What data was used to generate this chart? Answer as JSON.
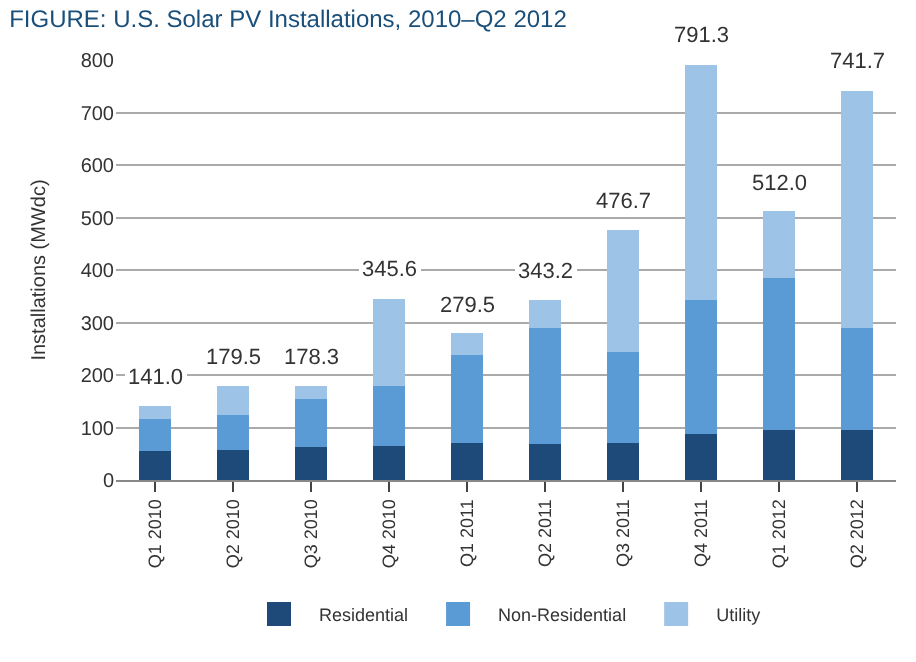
{
  "chart_data": {
    "type": "bar",
    "title": "FIGURE: U.S. Solar PV Installations, 2010–Q2 2012",
    "ylabel": "Installations (MWdc)",
    "categories": [
      "Q1 2010",
      "Q2 2010",
      "Q3 2010",
      "Q4 2010",
      "Q1 2011",
      "Q2 2011",
      "Q3 2011",
      "Q4 2011",
      "Q1 2012",
      "Q2 2012"
    ],
    "stacked": true,
    "series": [
      {
        "name": "Residential",
        "color": "#1d4a78",
        "values": [
          55,
          57,
          62,
          65,
          71,
          69,
          71,
          88,
          96,
          96
        ]
      },
      {
        "name": "Non-Residential",
        "color": "#5b9bd5",
        "values": [
          62,
          66,
          93,
          115,
          167,
          221,
          173,
          255,
          288,
          194
        ]
      },
      {
        "name": "Utility",
        "color": "#9dc3e6",
        "values": [
          24,
          56.5,
          23.3,
          165.6,
          41.5,
          53.2,
          232.7,
          448.3,
          128,
          451.7
        ]
      }
    ],
    "totals": [
      "141.0",
      "179.5",
      "178.3",
      "345.6",
      "279.5",
      "343.2",
      "476.7",
      "791.3",
      "512.0",
      "741.7"
    ],
    "ylim": [
      0,
      800
    ],
    "yticks": [
      0,
      100,
      200,
      300,
      400,
      500,
      600,
      700,
      800
    ],
    "grid": "y",
    "legend": "bottom"
  }
}
